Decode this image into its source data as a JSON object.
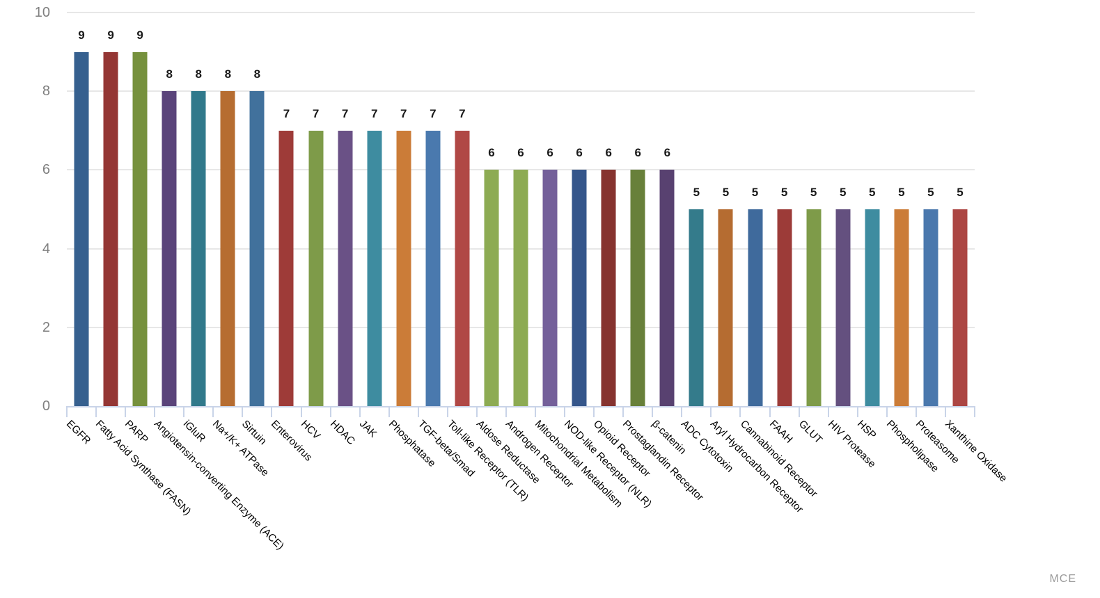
{
  "chart_data": {
    "type": "bar",
    "title": "",
    "xlabel": "",
    "ylabel": "",
    "categories": [
      "EGFR",
      "Fatty Acid Synthase (FASN)",
      "PARP",
      "Angiotensin-converting Enzyme (ACE)",
      "iGluR",
      "Na+/K+ ATPase",
      "Sirtuin",
      "Enterovirus",
      "HCV",
      "HDAC",
      "JAK",
      "Phosphatase",
      "TGF-beta/Smad",
      "Toll-like Receptor (TLR)",
      "Aldose Reductase",
      "Androgen Receptor",
      "Mitochondrial Metabolism",
      "NOD-like Receptor (NLR)",
      "Opioid Receptor",
      "Prostaglandin Receptor",
      "β-catenin",
      "ADC Cytotoxin",
      "Aryl Hydrocarbon Receptor",
      "Cannabinoid Receptor",
      "FAAH",
      "GLUT",
      "HIV Protease",
      "HSP",
      "Phospholipase",
      "Proteasome",
      "Xanthine Oxidase"
    ],
    "values": [
      9,
      9,
      9,
      8,
      8,
      8,
      8,
      7,
      7,
      7,
      7,
      7,
      7,
      7,
      6,
      6,
      6,
      6,
      6,
      6,
      6,
      5,
      5,
      5,
      5,
      5,
      5,
      5,
      5,
      5,
      5
    ],
    "bar_colors": [
      "#36608F",
      "#943634",
      "#76913D",
      "#5A447A",
      "#31798B",
      "#B66D31",
      "#41719C",
      "#9E3B38",
      "#7E9B49",
      "#6A5186",
      "#3E8CA0",
      "#CB7C38",
      "#4A79AE",
      "#B04845",
      "#8DAB53",
      "#8DAB53",
      "#74609A",
      "#35568B",
      "#86332F",
      "#68803A",
      "#584170",
      "#347B8B",
      "#B56C31",
      "#3F6A9C",
      "#9C3B38",
      "#7E9B49",
      "#64507F",
      "#3E8CA0",
      "#CB7C38",
      "#4A78AD",
      "#AC4643"
    ],
    "yticks": [
      0,
      2,
      4,
      6,
      8,
      10
    ],
    "ylim": [
      0,
      10
    ],
    "grid": "horizontal-only",
    "legend": "none",
    "value_labels_shown": true,
    "x_label_rotation_deg": 45
  },
  "watermark": {
    "label": "MCE"
  },
  "colors": {
    "background": "#FFFFFF",
    "axis_line": "#C9D4E8",
    "gridline": "#E7E7E7",
    "y_tick_text": "#7F7F7F",
    "value_label_text": "#1A1A1A",
    "x_label_text": "#000000",
    "watermark_text": "#9B9B9B"
  }
}
